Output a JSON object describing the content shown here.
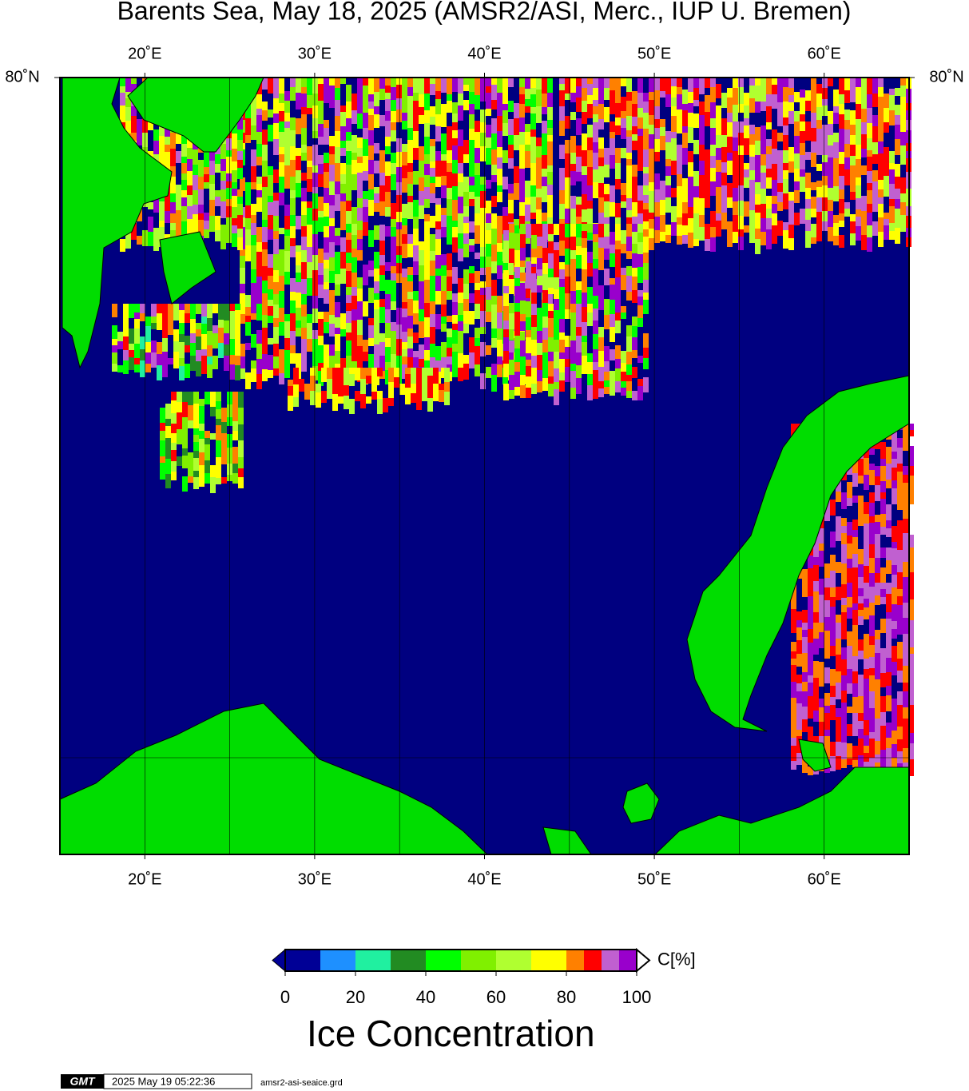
{
  "title": "Barents Sea, May 18, 2025 (AMSR2/ASI, Merc., IUP U. Bremen)",
  "map": {
    "lon_range": [
      15,
      65
    ],
    "lon_ticks": [
      {
        "value": 20,
        "label": "20˚E"
      },
      {
        "value": 30,
        "label": "30˚E"
      },
      {
        "value": 40,
        "label": "40˚E"
      },
      {
        "value": 50,
        "label": "50˚E"
      },
      {
        "value": 60,
        "label": "60˚E"
      }
    ],
    "lon_gridlines": [
      20,
      25,
      30,
      35,
      40,
      45,
      50,
      55,
      60
    ],
    "lat_label": "80˚N"
  },
  "colorbar": {
    "bounds": [
      0,
      10,
      20,
      30,
      40,
      50,
      60,
      70,
      80,
      85,
      90,
      95,
      100
    ],
    "colors": [
      "#000096",
      "#1e90ff",
      "#20f0a0",
      "#228b22",
      "#00ff00",
      "#80f000",
      "#b0ff30",
      "#ffff00",
      "#ff8000",
      "#ff0000",
      "#c060d0",
      "#9900cc"
    ],
    "ticks": [
      0,
      20,
      40,
      60,
      80,
      100
    ],
    "unit": "C[%]",
    "title": "Ice Concentration"
  },
  "footer": {
    "logo": "GMT",
    "timestamp": "2025 May 19 05:22:36",
    "file": "amsr2-asi-seaice.grd"
  }
}
